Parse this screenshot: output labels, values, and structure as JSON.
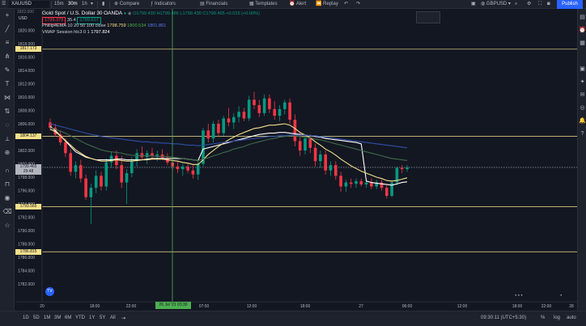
{
  "topbar": {
    "symbol_field": "XAUUSD",
    "intervals": [
      "15m",
      "30m",
      "1h"
    ],
    "compare": "Compare",
    "indicators": "Indicators",
    "financials": "Financials",
    "templates": "Templates",
    "alert": "Alert",
    "replay": "Replay",
    "account": "GBPUSD",
    "publish": "Publish"
  },
  "legend": {
    "title": "Gold Spot / U.S. Dollar",
    "interval": "30",
    "source": "OANDA",
    "ohlc": "O1799.430 H1799.486 L1799.430 C1799.465 +0.015 (+0.00%)",
    "sell": "1799.379",
    "spread": "35.4",
    "buy": "1799.617",
    "ema_line": "Phillip4EMA 10 20 50 100 close",
    "ema_values": [
      "1798.759",
      "1800.534",
      "1801.861"
    ],
    "vwap_line": "VWAP Session hlc3 0 1",
    "vwap_value": "1797.824",
    "currency": "USD"
  },
  "price_axis": {
    "labels": [
      "1822.000",
      "1820.000",
      "1818.000",
      "1816.000",
      "1814.000",
      "1812.000",
      "1810.000",
      "1808.000",
      "1806.000",
      "1804.000",
      "1802.000",
      "1800.000",
      "1798.000",
      "1796.000",
      "1794.000",
      "1792.000",
      "1790.000",
      "1788.000",
      "1786.000",
      "1784.000",
      "1782.000"
    ],
    "top_label": "1822.000",
    "tags": {
      "line_1817": "1817.173",
      "line_1804": "1804.137",
      "current": "1799.465",
      "current_time": "29:48",
      "line_1793": "1793.565",
      "line_1786": "1786.815"
    }
  },
  "time_axis": {
    "labels": [
      "18:00",
      "22:00",
      "07:00",
      "12:00",
      "18:00",
      "27",
      "06:00",
      "12:00",
      "18:00",
      "22:00",
      "28"
    ],
    "first_label": "20",
    "cursor_label": "26 Jul '21   03:30"
  },
  "bottombar": {
    "ranges": [
      "1D",
      "5D",
      "1M",
      "3M",
      "6M",
      "YTD",
      "1Y",
      "5Y",
      "All"
    ],
    "clock": "09:30:11 (UTC+5:30)",
    "percent": "%",
    "log": "log",
    "auto": "auto"
  },
  "chart_data": {
    "type": "candlestick",
    "title": "Gold Spot / U.S. Dollar",
    "ylim": [
      1781,
      1823
    ],
    "up_color": "#089981",
    "down_color": "#f23645",
    "horizontal_levels": [
      1817.173,
      1804.137,
      1793.565,
      1786.815
    ],
    "current_price": 1799.465,
    "candles": [
      [
        1806.2,
        1806.8,
        1805.0,
        1805.4
      ],
      [
        1805.4,
        1806.0,
        1804.1,
        1804.4
      ],
      [
        1804.4,
        1805.0,
        1802.8,
        1803.2
      ],
      [
        1803.2,
        1803.8,
        1801.0,
        1801.6
      ],
      [
        1801.6,
        1802.2,
        1798.2,
        1798.8
      ],
      [
        1798.8,
        1800.4,
        1797.8,
        1799.8
      ],
      [
        1799.8,
        1800.6,
        1797.2,
        1797.8
      ],
      [
        1797.8,
        1798.4,
        1794.6,
        1795.0
      ],
      [
        1795.0,
        1797.0,
        1791.0,
        1796.4
      ],
      [
        1796.4,
        1799.0,
        1795.6,
        1798.2
      ],
      [
        1798.2,
        1798.8,
        1796.0,
        1796.6
      ],
      [
        1796.6,
        1800.8,
        1796.0,
        1800.2
      ],
      [
        1800.2,
        1801.8,
        1799.4,
        1801.2
      ],
      [
        1801.2,
        1802.0,
        1799.2,
        1799.8
      ],
      [
        1799.8,
        1801.2,
        1796.4,
        1797.2
      ],
      [
        1797.2,
        1799.2,
        1794.0,
        1798.6
      ],
      [
        1798.6,
        1801.0,
        1798.0,
        1800.4
      ],
      [
        1800.4,
        1802.2,
        1799.6,
        1801.6
      ],
      [
        1801.6,
        1802.6,
        1800.6,
        1801.0
      ],
      [
        1801.0,
        1802.0,
        1800.0,
        1801.6
      ],
      [
        1801.6,
        1802.4,
        1800.8,
        1801.2
      ],
      [
        1801.2,
        1802.0,
        1800.4,
        1801.4
      ],
      [
        1801.4,
        1802.2,
        1800.6,
        1800.9
      ],
      [
        1800.9,
        1801.6,
        1799.8,
        1800.2
      ],
      [
        1800.2,
        1801.0,
        1799.0,
        1799.6
      ],
      [
        1799.6,
        1800.4,
        1798.6,
        1799.2
      ],
      [
        1799.2,
        1800.0,
        1798.2,
        1799.6
      ],
      [
        1799.6,
        1800.0,
        1798.6,
        1799.0
      ],
      [
        1799.0,
        1799.8,
        1797.8,
        1798.4
      ],
      [
        1798.4,
        1800.6,
        1797.6,
        1800.0
      ],
      [
        1800.0,
        1805.4,
        1799.6,
        1805.0
      ],
      [
        1805.0,
        1806.0,
        1803.2,
        1803.8
      ],
      [
        1803.8,
        1806.4,
        1803.2,
        1806.0
      ],
      [
        1806.0,
        1806.6,
        1804.0,
        1804.6
      ],
      [
        1804.6,
        1807.2,
        1804.2,
        1806.8
      ],
      [
        1806.8,
        1808.4,
        1805.6,
        1806.2
      ],
      [
        1806.2,
        1807.6,
        1805.2,
        1807.0
      ],
      [
        1807.0,
        1808.6,
        1806.2,
        1807.8
      ],
      [
        1807.8,
        1808.4,
        1806.4,
        1806.8
      ],
      [
        1806.8,
        1810.2,
        1806.4,
        1809.6
      ],
      [
        1809.6,
        1810.8,
        1808.2,
        1808.8
      ],
      [
        1808.8,
        1809.6,
        1807.0,
        1807.6
      ],
      [
        1807.6,
        1810.4,
        1807.2,
        1809.8
      ],
      [
        1809.8,
        1810.4,
        1807.6,
        1808.2
      ],
      [
        1808.2,
        1809.4,
        1806.6,
        1807.2
      ],
      [
        1807.2,
        1808.8,
        1806.4,
        1808.2
      ],
      [
        1808.2,
        1809.6,
        1807.4,
        1809.2
      ],
      [
        1809.2,
        1809.8,
        1806.0,
        1806.6
      ],
      [
        1806.6,
        1807.4,
        1802.6,
        1803.4
      ],
      [
        1803.4,
        1804.6,
        1801.2,
        1802.0
      ],
      [
        1802.0,
        1804.4,
        1801.4,
        1803.8
      ],
      [
        1803.8,
        1804.4,
        1801.6,
        1802.4
      ],
      [
        1802.4,
        1803.0,
        1799.6,
        1800.4
      ],
      [
        1800.4,
        1802.0,
        1799.4,
        1801.4
      ],
      [
        1801.4,
        1802.0,
        1798.4,
        1799.0
      ],
      [
        1799.0,
        1800.4,
        1798.2,
        1799.8
      ],
      [
        1799.8,
        1800.4,
        1797.6,
        1798.2
      ],
      [
        1798.2,
        1798.8,
        1795.8,
        1796.6
      ],
      [
        1796.6,
        1797.6,
        1795.8,
        1797.2
      ],
      [
        1797.2,
        1797.8,
        1796.4,
        1797.0
      ],
      [
        1797.0,
        1797.8,
        1796.4,
        1797.4
      ],
      [
        1797.4,
        1797.8,
        1796.6,
        1796.9
      ],
      [
        1796.9,
        1797.6,
        1796.4,
        1797.2
      ],
      [
        1797.2,
        1797.8,
        1796.2,
        1796.6
      ],
      [
        1796.6,
        1797.6,
        1796.2,
        1797.2
      ],
      [
        1797.2,
        1797.6,
        1796.0,
        1796.4
      ],
      [
        1796.4,
        1796.8,
        1794.8,
        1795.2
      ],
      [
        1795.2,
        1797.6,
        1795.0,
        1797.2
      ],
      [
        1797.2,
        1799.6,
        1796.8,
        1799.4
      ],
      [
        1799.4,
        1799.8,
        1798.6,
        1799.2
      ],
      [
        1799.2,
        1799.8,
        1798.8,
        1799.465
      ]
    ],
    "ema_series": [
      {
        "color": "#ffffff",
        "values": [
          1805.6,
          1805.0,
          1804.2,
          1803.4,
          1802.6,
          1801.8,
          1801.4,
          1801.0,
          1800.8,
          1800.6,
          1800.6,
          1800.6,
          1800.6,
          1800.7,
          1800.7,
          1800.6,
          1800.6,
          1800.6,
          1800.6,
          1800.7,
          1800.8,
          1800.8,
          1800.8,
          1800.8,
          1800.8,
          1800.8,
          1800.8,
          1800.7,
          1800.6,
          1800.5,
          1802.2,
          1802.4,
          1802.6,
          1802.8,
          1803.0,
          1803.2,
          1803.4,
          1803.6,
          1803.8,
          1804.0,
          1804.2,
          1804.4,
          1804.5,
          1804.6,
          1804.6,
          1804.7,
          1804.7,
          1804.6,
          1804.5,
          1804.4,
          1804.3,
          1804.2,
          1804.1,
          1804.0,
          1803.8,
          1803.7,
          1803.6,
          1803.5,
          1803.4,
          1803.3,
          1803.2,
          1803.0,
          1797.4,
          1797.2,
          1797.1,
          1797.0,
          1796.9,
          1796.8,
          1797.0,
          1797.2,
          1797.3
        ]
      },
      {
        "color": "#f5e08a",
        "values": [
          1805.2,
          1804.8,
          1804.2,
          1803.5,
          1802.8,
          1802.1,
          1801.6,
          1801.1,
          1800.8,
          1800.6,
          1800.4,
          1800.4,
          1800.5,
          1800.6,
          1800.5,
          1800.4,
          1800.4,
          1800.5,
          1800.6,
          1800.6,
          1800.7,
          1800.7,
          1800.7,
          1800.6,
          1800.5,
          1800.4,
          1800.2,
          1800.1,
          1799.9,
          1799.9,
          1800.6,
          1801.4,
          1802.0,
          1802.6,
          1803.1,
          1803.6,
          1804.0,
          1804.4,
          1804.7,
          1805.0,
          1805.3,
          1805.4,
          1805.6,
          1805.8,
          1805.8,
          1805.9,
          1806.0,
          1805.8,
          1805.3,
          1804.7,
          1804.3,
          1803.9,
          1803.3,
          1802.8,
          1802.2,
          1801.8,
          1801.3,
          1800.7,
          1800.2,
          1799.7,
          1799.3,
          1798.9,
          1798.6,
          1798.3,
          1798.0,
          1797.8,
          1797.5,
          1797.4,
          1797.5,
          1797.7,
          1797.9
        ]
      },
      {
        "color": "#3f6b4a",
        "values": [
          1805.4,
          1805.2,
          1804.9,
          1804.6,
          1804.2,
          1803.8,
          1803.4,
          1803.0,
          1802.7,
          1802.4,
          1802.1,
          1801.9,
          1801.8,
          1801.7,
          1801.6,
          1801.4,
          1801.3,
          1801.2,
          1801.2,
          1801.2,
          1801.2,
          1801.1,
          1801.1,
          1801.1,
          1801.0,
          1800.9,
          1800.8,
          1800.7,
          1800.6,
          1800.5,
          1800.7,
          1800.9,
          1801.2,
          1801.4,
          1801.7,
          1801.9,
          1802.2,
          1802.4,
          1802.6,
          1802.9,
          1803.1,
          1803.3,
          1803.5,
          1803.7,
          1803.8,
          1804.0,
          1804.1,
          1804.2,
          1804.2,
          1804.1,
          1804.0,
          1803.9,
          1803.7,
          1803.6,
          1803.4,
          1803.2,
          1803.0,
          1802.8,
          1802.6,
          1802.4,
          1802.2,
          1802.0,
          1801.8,
          1801.6,
          1801.4,
          1801.2,
          1801.0,
          1800.8,
          1800.7,
          1800.6,
          1800.5
        ]
      },
      {
        "color": "#2f4ea8",
        "values": [
          1806.0,
          1805.8,
          1805.6,
          1805.4,
          1805.2,
          1805.0,
          1804.8,
          1804.6,
          1804.4,
          1804.3,
          1804.1,
          1804.0,
          1803.9,
          1803.8,
          1803.7,
          1803.6,
          1803.5,
          1803.4,
          1803.3,
          1803.3,
          1803.2,
          1803.2,
          1803.1,
          1803.1,
          1803.0,
          1803.0,
          1802.9,
          1802.8,
          1802.8,
          1802.7,
          1802.8,
          1802.9,
          1803.0,
          1803.1,
          1803.2,
          1803.3,
          1803.4,
          1803.5,
          1803.6,
          1803.7,
          1803.8,
          1803.9,
          1804.0,
          1804.1,
          1804.1,
          1804.2,
          1804.2,
          1804.3,
          1804.3,
          1804.3,
          1804.3,
          1804.2,
          1804.2,
          1804.1,
          1804.0,
          1803.9,
          1803.8,
          1803.7,
          1803.6,
          1803.5,
          1803.4,
          1803.3,
          1803.2,
          1803.1,
          1803.0,
          1802.9,
          1802.8,
          1802.7,
          1802.6,
          1802.5,
          1802.4
        ]
      }
    ]
  }
}
